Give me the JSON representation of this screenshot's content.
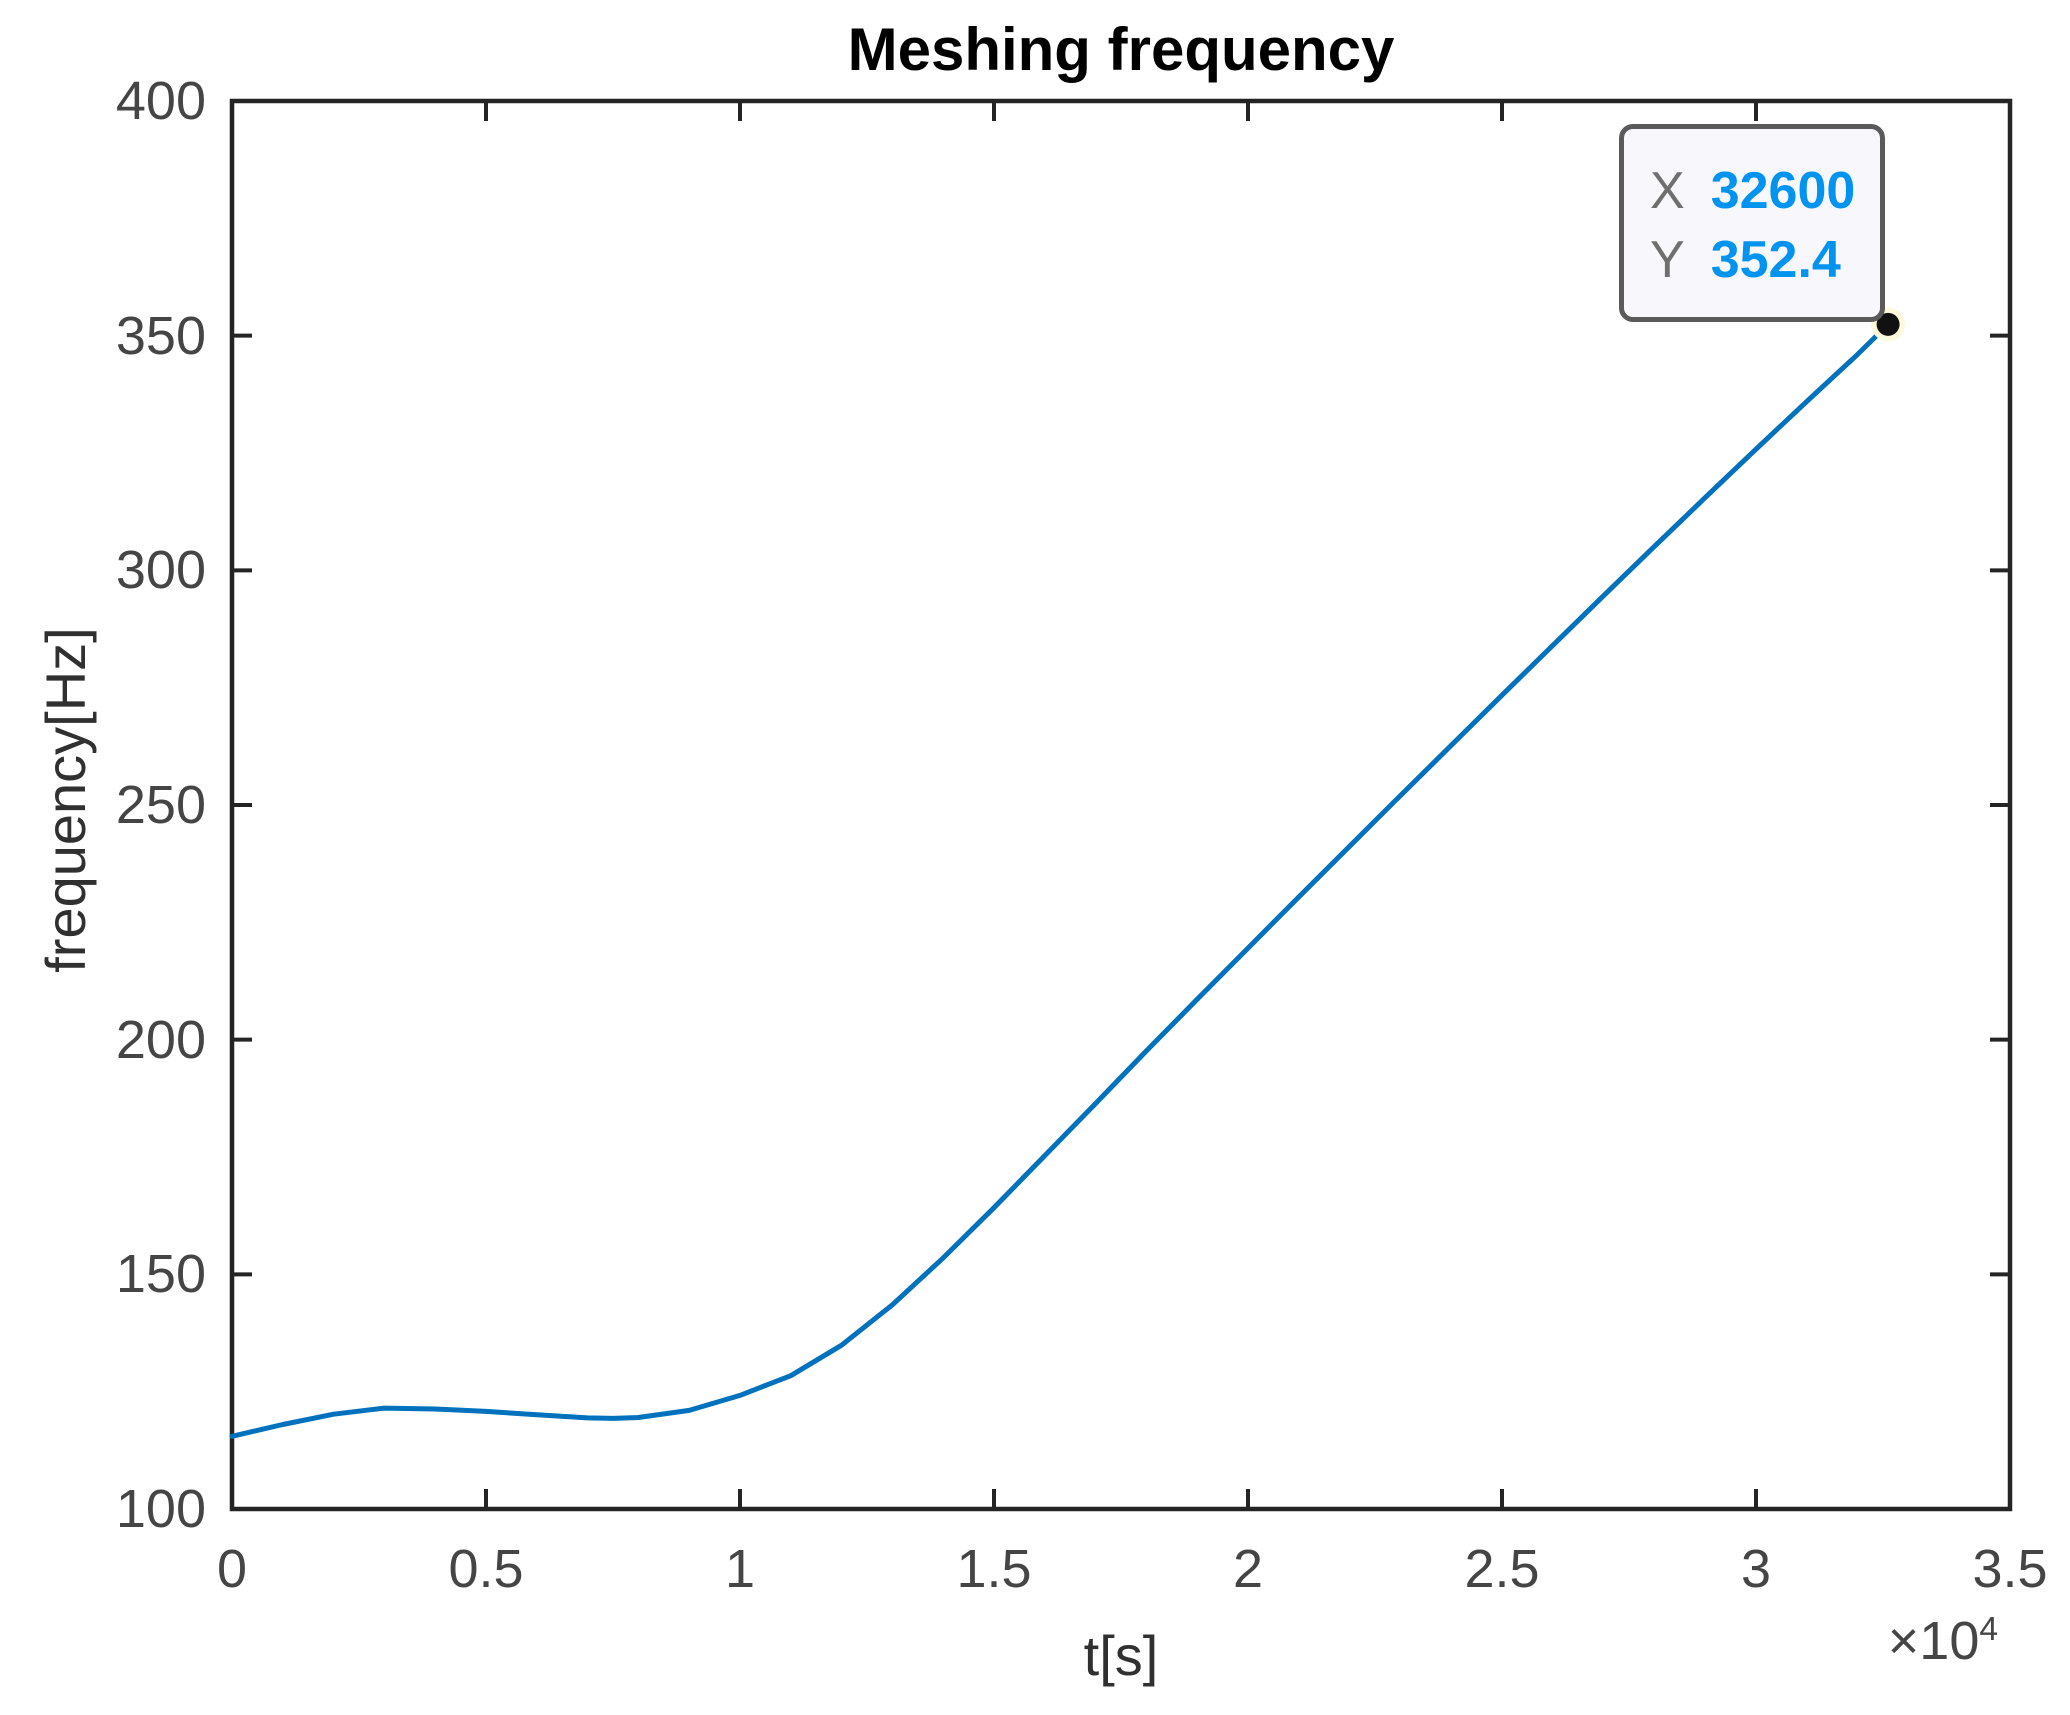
{
  "colors": {
    "line": "#0072BD",
    "axis_color": "#242424",
    "tick_label_color": "#454545",
    "axis_label_color": "#303030",
    "datatip_bg": "#F8F8FC",
    "datatip_border": "#5A5A5A",
    "datatip_label": "#6F6F6F",
    "datatip_value": "#0094F0",
    "marker_fill": "#111111",
    "marker_halo": "#FCF9DC"
  },
  "chart_data": {
    "type": "line",
    "title": "Meshing frequency",
    "xlabel": "t[s]",
    "ylabel": "frequency[Hz]",
    "xlim": [
      0,
      35000
    ],
    "ylim": [
      100,
      400
    ],
    "grid": false,
    "legend": "none",
    "x_ticks": {
      "values": [
        0,
        5000,
        10000,
        15000,
        20000,
        25000,
        30000,
        35000
      ],
      "labels": [
        "0",
        "0.5",
        "1",
        "1.5",
        "2",
        "2.5",
        "3",
        "3.5"
      ],
      "exponent_base": "×10",
      "exponent_power": "4"
    },
    "y_ticks": {
      "values": [
        100,
        150,
        200,
        250,
        300,
        350,
        400
      ],
      "labels": [
        "100",
        "150",
        "200",
        "250",
        "300",
        "350",
        "400"
      ]
    },
    "series": [
      {
        "name": "meshing frequency",
        "x": [
          0,
          1000,
          2000,
          3000,
          4000,
          5000,
          6000,
          7000,
          7500,
          8000,
          9000,
          10000,
          11000,
          12000,
          13000,
          14000,
          15000,
          16000,
          17000,
          18000,
          19000,
          20000,
          21000,
          22000,
          23000,
          24000,
          25000,
          26000,
          27000,
          28000,
          29000,
          30000,
          31000,
          32000,
          32600
        ],
        "y": [
          115.5,
          118.0,
          120.2,
          121.5,
          121.3,
          120.8,
          120.1,
          119.4,
          119.3,
          119.5,
          121.0,
          124.2,
          128.4,
          134.9,
          143.5,
          153.5,
          164.2,
          175.3,
          186.4,
          197.6,
          208.6,
          219.5,
          230.4,
          241.2,
          252.0,
          262.7,
          273.4,
          284.0,
          294.6,
          305.1,
          315.5,
          325.8,
          336.0,
          346.0,
          352.4
        ]
      }
    ],
    "datatip": {
      "x_label": "X",
      "x_value": "32600",
      "y_label": "Y",
      "y_value": "352.4"
    }
  }
}
